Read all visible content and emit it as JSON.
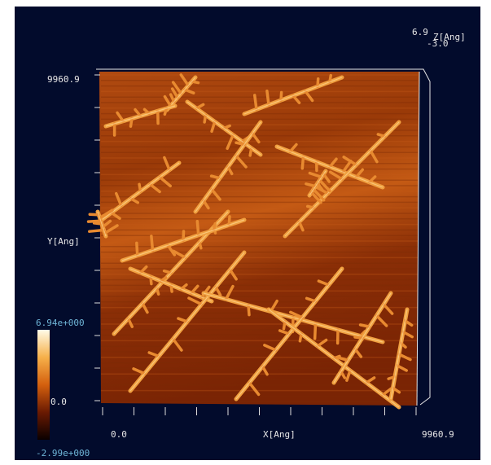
{
  "z_axis": {
    "max": "6.9",
    "label": "Z[Ang]",
    "min": "-3.0"
  },
  "y_axis": {
    "max": "9960.9",
    "label": "Y[Ang]"
  },
  "x_axis": {
    "min": "0.0",
    "label": "X[Ang]",
    "max": "9960.9"
  },
  "colorbar": {
    "max": "6.94e+000",
    "mid": "0.0",
    "min": "-2.99e+000"
  }
}
